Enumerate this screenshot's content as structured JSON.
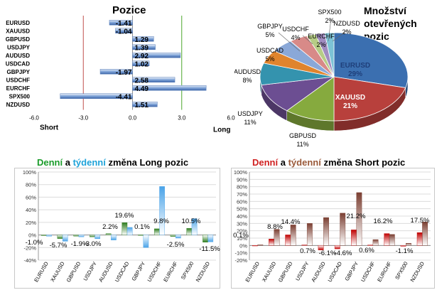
{
  "positions": {
    "title": "Pozice",
    "short_label": "Short",
    "long_label": "Long",
    "axis_ticks": [
      "-6.0",
      "-3.0",
      "0.0",
      "3.0",
      "6.0"
    ]
  },
  "pie_title_lines": [
    "Množství",
    "otevřených",
    "pozic"
  ],
  "long_title": {
    "part1": "Denní",
    "part2": " a ",
    "part3": "týdenní",
    "part4": " změna Long pozic"
  },
  "short_title": {
    "part1": "Denní",
    "part2": " a ",
    "part3": "týdenní",
    "part4": " změna Short pozic"
  },
  "colors": {
    "red_line": "#c0504d",
    "green_line": "#4ea72e",
    "bar_blue": "#4f81bd",
    "daily_green": "#2e7d1e",
    "weekly_blue": "#4aa3e8",
    "daily_red": "#c00000",
    "weekly_brown": "#7b3f32",
    "title_green": "#1a9c2a",
    "title_blue": "#1fa3d9",
    "title_red": "#d02020",
    "title_brown": "#9a5a3a"
  },
  "chart_data": [
    {
      "type": "bar",
      "orientation": "horizontal",
      "title": "Pozice",
      "categories": [
        "EURUSD",
        "XAUUSD",
        "GBPUSD",
        "USDJPY",
        "AUDUSD",
        "USDCAD",
        "GBPJPY",
        "USDCHF",
        "EURCHF",
        "SPX500",
        "NZDUSD"
      ],
      "values": [
        -1.41,
        -1.04,
        1.29,
        1.39,
        2.92,
        1.02,
        -1.97,
        2.58,
        4.49,
        -4.41,
        1.51
      ],
      "value_labels": [
        "-1.41",
        "-1.04",
        "1.29",
        "1.39",
        "2.92",
        "1.02",
        "-1.97",
        "2.58",
        "4.49",
        "-4.41",
        "1.51"
      ],
      "xlim": [
        -6,
        6
      ],
      "xticks": [
        -6,
        -3,
        0,
        3,
        6
      ],
      "reference_lines": [
        -3,
        3
      ]
    },
    {
      "type": "pie",
      "title": "Množství otevřených pozic",
      "labels": [
        "EURUSD",
        "XAUUSD",
        "GBPUSD",
        "USDJPY",
        "AUDUSD",
        "USDCAD",
        "GBPJPY",
        "USDCHF",
        "EURCHF",
        "SPX500",
        "NZDUSD"
      ],
      "values": [
        29,
        21,
        11,
        11,
        8,
        5,
        5,
        4,
        2,
        2,
        2
      ],
      "value_labels": [
        "29%",
        "21%",
        "11%",
        "11%",
        "8%",
        "5%",
        "5%",
        "4%",
        "2%",
        "2%",
        "2%"
      ],
      "colors": [
        "#3b6fb0",
        "#b8403c",
        "#86aa3e",
        "#6c4e92",
        "#3493ae",
        "#e0842d",
        "#8aa8d8",
        "#d88a88",
        "#b6cc86",
        "#a08cc0",
        "#7cc3d6"
      ]
    },
    {
      "type": "bar",
      "title": "Denní a týdenní změna Long pozic",
      "categories": [
        "EURUSD",
        "XAUUSD",
        "GBPUSD",
        "USDJPY",
        "AUDUSD",
        "USDCAD",
        "GBPJPY",
        "USDCHF",
        "EURCHF",
        "SPX500",
        "NZDUSD"
      ],
      "series": [
        {
          "values": [
            -1.0,
            -5.7,
            -1.9,
            -3.0,
            2.2,
            19.6,
            0.1,
            9.8,
            -2.5,
            10.5,
            -11.5
          ]
        },
        {
          "values": [
            -2,
            -10,
            -3,
            -6,
            -8,
            12,
            -20,
            77,
            -5,
            26,
            -11
          ]
        }
      ],
      "value_labels": [
        "-1.0%",
        "-5.7%",
        "-1.9%",
        "-3.0%",
        "2.2%",
        "19.6%",
        "0.1%",
        "9.8%",
        "-2.5%",
        "10.5%",
        "-11.5%"
      ],
      "ylim": [
        -40,
        100
      ],
      "yticks": [
        "-40%",
        "-20%",
        "0%",
        "20%",
        "40%",
        "60%",
        "80%",
        "100%"
      ]
    },
    {
      "type": "bar",
      "title": "Denní a týdenní změna Short pozic",
      "categories": [
        "EURUSD",
        "XAUUSD",
        "GBPUSD",
        "USDJPY",
        "AUDUSD",
        "USDCAD",
        "GBPJPY",
        "USDCHF",
        "EURCHF",
        "SPX500",
        "NZDUSD"
      ],
      "series": [
        {
          "values": [
            0.1,
            8.8,
            14.4,
            0.7,
            -6.1,
            -4.6,
            21.2,
            0.6,
            16.2,
            -1.1,
            17.5
          ]
        },
        {
          "values": [
            1,
            22,
            28,
            30,
            38,
            44,
            72,
            8,
            15,
            3,
            32
          ]
        }
      ],
      "value_labels": [
        "0.1%",
        "8.8%",
        "14.4%",
        "0.7%",
        "-6.1%",
        "-4.6%",
        "21.2%",
        "0.6%",
        "16.2%",
        "-1.1%",
        "17.5%"
      ],
      "ylim": [
        -20,
        100
      ],
      "yticks": [
        "-20%",
        "-10%",
        "0%",
        "10%",
        "20%",
        "30%",
        "40%",
        "50%",
        "60%",
        "70%",
        "80%",
        "90%",
        "100%"
      ]
    }
  ]
}
